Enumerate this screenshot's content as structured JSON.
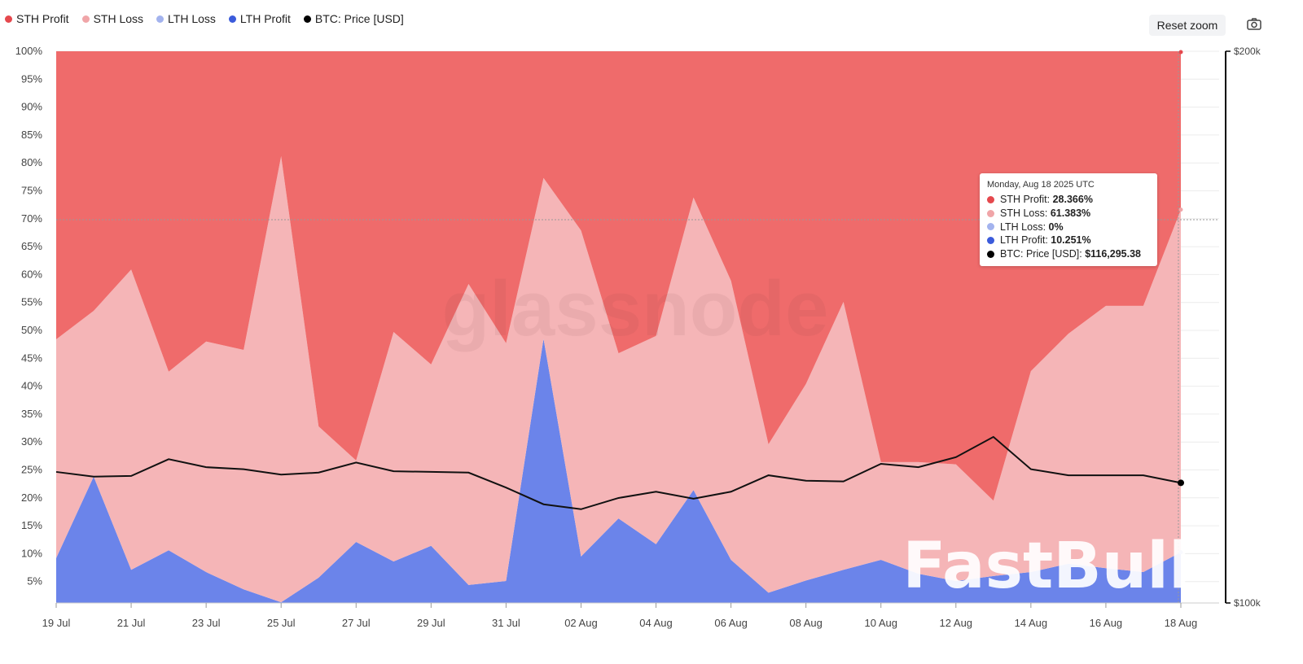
{
  "legend": [
    {
      "label": "STH Profit",
      "color": "#e5484d"
    },
    {
      "label": "STH Loss",
      "color": "#f0a5a8"
    },
    {
      "label": "LTH Loss",
      "color": "#a3b3ee"
    },
    {
      "label": "LTH Profit",
      "color": "#3b5bdb"
    },
    {
      "label": "BTC: Price [USD]",
      "color": "#000000"
    }
  ],
  "toolbar": {
    "reset_zoom": "Reset zoom",
    "camera_icon": "camera-icon"
  },
  "watermarks": {
    "glassnode": "glassnode",
    "fastbull": "FastBull"
  },
  "tooltip": {
    "date": "Monday, Aug 18 2025 UTC",
    "rows": [
      {
        "label": "STH Profit: ",
        "value": "28.366%",
        "color": "#e5484d"
      },
      {
        "label": "STH Loss: ",
        "value": "61.383%",
        "color": "#f0a5a8"
      },
      {
        "label": "LTH Loss: ",
        "value": "0%",
        "color": "#a3b3ee"
      },
      {
        "label": "LTH Profit: ",
        "value": "10.251%",
        "color": "#3b5bdb"
      },
      {
        "label": "BTC: Price [USD]: ",
        "value": "$116,295.38",
        "color": "#000000"
      }
    ]
  },
  "chart_data": {
    "type": "area",
    "stacked": true,
    "x": [
      "19 Jul",
      "20 Jul",
      "21 Jul",
      "22 Jul",
      "23 Jul",
      "24 Jul",
      "25 Jul",
      "26 Jul",
      "27 Jul",
      "28 Jul",
      "29 Jul",
      "30 Jul",
      "31 Jul",
      "01 Aug",
      "02 Aug",
      "03 Aug",
      "04 Aug",
      "05 Aug",
      "06 Aug",
      "07 Aug",
      "08 Aug",
      "09 Aug",
      "10 Aug",
      "11 Aug",
      "12 Aug",
      "13 Aug",
      "14 Aug",
      "15 Aug",
      "16 Aug",
      "17 Aug",
      "18 Aug"
    ],
    "x_ticks": [
      "19 Jul",
      "21 Jul",
      "23 Jul",
      "25 Jul",
      "27 Jul",
      "29 Jul",
      "31 Jul",
      "02 Aug",
      "04 Aug",
      "06 Aug",
      "08 Aug",
      "10 Aug",
      "12 Aug",
      "14 Aug",
      "16 Aug",
      "18 Aug"
    ],
    "y_ticks": [
      "100%",
      "95%",
      "90%",
      "85%",
      "80%",
      "75%",
      "70%",
      "65%",
      "60%",
      "55%",
      "50%",
      "45%",
      "40%",
      "35%",
      "30%",
      "25%",
      "20%",
      "15%",
      "10%",
      "5%"
    ],
    "ylim": [
      0,
      100
    ],
    "y2_ticks": [
      "$200k",
      "$100k"
    ],
    "y2lim": [
      100000,
      200000
    ],
    "y2_scale": "log",
    "grid": true,
    "legend_position": "top-left",
    "series": [
      {
        "name": "LTH Profit",
        "color": "#6b84ea",
        "values": [
          9.2,
          23.8,
          7.1,
          10.6,
          6.7,
          3.6,
          1.3,
          5.7,
          12.1,
          8.6,
          11.4,
          4.4,
          5.1,
          48.5,
          9.5,
          16.3,
          11.7,
          21.4,
          8.9,
          3.0,
          5.2,
          7.1,
          8.9,
          6.4,
          5.1,
          6.0,
          6.7,
          8.2,
          7.4,
          6.7,
          10.251
        ]
      },
      {
        "name": "LTH Loss",
        "color": "#a3b3ee",
        "values": [
          0,
          0,
          0,
          0,
          0,
          0,
          0,
          0,
          0,
          0,
          0,
          0,
          0,
          0,
          0,
          0,
          0,
          0,
          0,
          0,
          0,
          0,
          0,
          0,
          0,
          0,
          0,
          0,
          0,
          0,
          0
        ]
      },
      {
        "name": "STH Loss",
        "color": "#f5b5b7",
        "values": [
          39.2,
          29.7,
          53.8,
          32.0,
          41.3,
          42.9,
          79.9,
          27.1,
          14.6,
          41.1,
          32.5,
          53.9,
          42.6,
          28.8,
          58.4,
          29.6,
          37.3,
          52.4,
          50.0,
          26.6,
          35.2,
          48.0,
          17.5,
          20.0,
          20.9,
          13.5,
          36.0,
          41.2,
          47.0,
          47.7,
          61.383
        ]
      },
      {
        "name": "STH Profit",
        "color": "#ef6b6b",
        "values": [
          51.6,
          46.5,
          39.1,
          57.4,
          52.0,
          53.5,
          18.8,
          67.2,
          73.3,
          50.3,
          56.1,
          41.7,
          52.3,
          22.7,
          32.1,
          54.1,
          51.0,
          26.2,
          41.1,
          70.4,
          59.6,
          44.9,
          73.6,
          73.6,
          74.0,
          80.5,
          57.3,
          50.6,
          45.6,
          45.6,
          28.366
        ]
      },
      {
        "name": "BTC: Price [USD]",
        "color": "#000000",
        "axis": "right",
        "values": [
          117900,
          117200,
          117300,
          119800,
          118600,
          118300,
          117500,
          117800,
          119300,
          118000,
          117900,
          117800,
          115600,
          113200,
          112500,
          114100,
          115000,
          114000,
          115000,
          117400,
          116600,
          116500,
          119100,
          118600,
          120100,
          123200,
          118300,
          117400,
          117400,
          117400,
          116295.38
        ]
      }
    ]
  }
}
